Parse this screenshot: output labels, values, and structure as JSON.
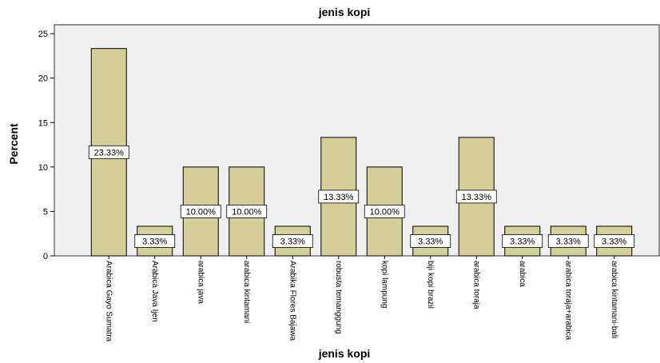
{
  "chart_data": {
    "type": "bar",
    "title": "jenis kopi",
    "x_label": "jenis kopi",
    "y_label": "Percent",
    "categories": [
      "Arabica Gayo Sumatra",
      "Arabica Java Ijen",
      "arabica java",
      "arabica kintamani",
      "Arabika Flores Bajawa",
      "robusta temanggung",
      "kopi lampung",
      "biji kopi brazil",
      "arabica toraja",
      "arabica",
      "arabica toraja+arabica",
      "arabica kintamani-bali"
    ],
    "values": [
      23.33,
      3.33,
      10,
      10,
      3.33,
      13.33,
      10,
      3.33,
      13.33,
      3.33,
      3.33,
      3.33
    ],
    "value_labels": [
      "23.33%",
      "3.33%",
      "10.00%",
      "10.00%",
      "3.33%",
      "13.33%",
      "10.00%",
      "3.33%",
      "13.33%",
      "3.33%",
      "3.33%",
      "3.33%"
    ],
    "color": "#d4cf98",
    "ylim": [
      0,
      26
    ],
    "yticks": [
      0,
      5,
      10,
      15,
      20,
      25
    ],
    "grid": false
  }
}
